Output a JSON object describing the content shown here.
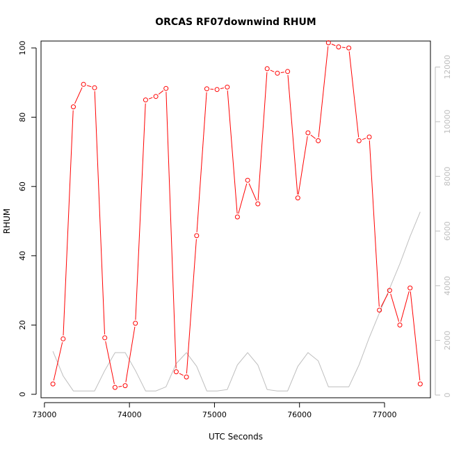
{
  "chart_data": {
    "type": "line",
    "title": "ORCAS RF07downwind RHUM",
    "xlabel": "UTC Seconds",
    "ylabel": "RHUM",
    "xlim": [
      72960,
      77540
    ],
    "ylim": [
      -1,
      102
    ],
    "y2lim": [
      -100,
      12950
    ],
    "x_ticks": [
      73000,
      74000,
      75000,
      76000,
      77000
    ],
    "y_ticks": [
      0,
      20,
      40,
      60,
      80,
      100
    ],
    "y2_ticks": [
      0,
      2000,
      4000,
      6000,
      8000,
      10000,
      12000
    ],
    "grid": false,
    "colors": {
      "rhum": "#ff0000",
      "secondary": "#bebebe",
      "axes": "#000000",
      "secondary_axis": "#bebebe"
    },
    "series": [
      {
        "axis": "left",
        "style": "line+points",
        "color": "#ff0000",
        "x": [
          73100,
          73220,
          73340,
          73460,
          73590,
          73710,
          73830,
          73950,
          74070,
          74190,
          74310,
          74430,
          74550,
          74670,
          74790,
          74910,
          75030,
          75150,
          75270,
          75390,
          75510,
          75620,
          75740,
          75860,
          75980,
          76100,
          76220,
          76340,
          76460,
          76580,
          76700,
          76820,
          76940,
          77060,
          77180,
          77300,
          77420
        ],
        "values": [
          3,
          16,
          83,
          89.5,
          88.5,
          16.3,
          2,
          2.5,
          20.5,
          85,
          86,
          88.3,
          6.5,
          5,
          45.8,
          88.2,
          88,
          88.7,
          51.2,
          61.8,
          55,
          94,
          92.7,
          93.2,
          56.7,
          75.5,
          73.2,
          101.5,
          100.3,
          100,
          73.2,
          74.3,
          24.3,
          30,
          20,
          30.7,
          3
        ]
      },
      {
        "axis": "right",
        "style": "line",
        "color": "#bebebe",
        "x": [
          73100,
          73220,
          73340,
          73460,
          73590,
          73710,
          73830,
          73950,
          74070,
          74190,
          74310,
          74430,
          74550,
          74670,
          74790,
          74910,
          75030,
          75150,
          75270,
          75390,
          75510,
          75620,
          75740,
          75860,
          75980,
          76100,
          76220,
          76340,
          76460,
          76580,
          76700,
          76820,
          76940,
          77060,
          77180,
          77300,
          77420
        ],
        "values": [
          1600,
          700,
          150,
          150,
          150,
          900,
          1550,
          1550,
          900,
          150,
          150,
          300,
          1150,
          1550,
          1050,
          150,
          150,
          200,
          1100,
          1550,
          1100,
          200,
          150,
          150,
          1050,
          1550,
          1250,
          300,
          300,
          300,
          1100,
          2100,
          3000,
          3900,
          4800,
          5800,
          6700
        ]
      }
    ]
  }
}
